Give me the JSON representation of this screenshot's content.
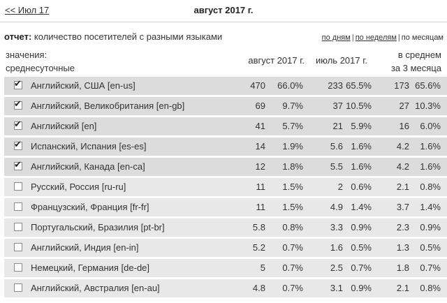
{
  "header": {
    "prev_link": "<< Июл 17",
    "title": "август 2017 г."
  },
  "report": {
    "label": "отчет:",
    "description": "количество посетителей с разными языками"
  },
  "views": {
    "by_days": "по дням",
    "by_weeks": "по неделям",
    "by_months": "по месяцам",
    "separator": "|"
  },
  "table": {
    "metric_line1": "значения:",
    "metric_line2": "среднесуточные",
    "col_aug": "август 2017 г.",
    "col_jul": "июль 2017 г.",
    "col_avg_line1": "в среднем",
    "col_avg_line2": "за 3 месяца",
    "rows": [
      {
        "lang": "Английский, США [en-us]",
        "checked": true,
        "aug": "470",
        "aug_pct": "66.0%",
        "jul": "233",
        "jul_pct": "65.5%",
        "avg": "173",
        "avg_pct": "65.6%"
      },
      {
        "lang": "Английский, Великобритания [en-gb]",
        "checked": true,
        "aug": "69",
        "aug_pct": "9.7%",
        "jul": "37",
        "jul_pct": "10.5%",
        "avg": "27",
        "avg_pct": "10.3%"
      },
      {
        "lang": "Английский [en]",
        "checked": true,
        "aug": "41",
        "aug_pct": "5.7%",
        "jul": "21",
        "jul_pct": "5.9%",
        "avg": "16",
        "avg_pct": "6.0%"
      },
      {
        "lang": "Испанский, Испания [es-es]",
        "checked": true,
        "aug": "14",
        "aug_pct": "1.9%",
        "jul": "5.6",
        "jul_pct": "1.6%",
        "avg": "4.2",
        "avg_pct": "1.6%"
      },
      {
        "lang": "Английский, Канада [en-ca]",
        "checked": true,
        "aug": "12",
        "aug_pct": "1.8%",
        "jul": "5.5",
        "jul_pct": "1.6%",
        "avg": "4.2",
        "avg_pct": "1.6%"
      },
      {
        "lang": "Русский, Россия [ru-ru]",
        "checked": false,
        "aug": "11",
        "aug_pct": "1.5%",
        "jul": "2",
        "jul_pct": "0.6%",
        "avg": "2.1",
        "avg_pct": "0.8%"
      },
      {
        "lang": "Французский, Франция [fr-fr]",
        "checked": false,
        "aug": "11",
        "aug_pct": "1.5%",
        "jul": "4.9",
        "jul_pct": "1.4%",
        "avg": "3.7",
        "avg_pct": "1.4%"
      },
      {
        "lang": "Португальский, Бразилия [pt-br]",
        "checked": false,
        "aug": "5.8",
        "aug_pct": "0.8%",
        "jul": "3.3",
        "jul_pct": "0.9%",
        "avg": "2.3",
        "avg_pct": "0.9%"
      },
      {
        "lang": "Английский, Индия [en-in]",
        "checked": false,
        "aug": "5.2",
        "aug_pct": "0.7%",
        "jul": "1.6",
        "jul_pct": "0.5%",
        "avg": "1.3",
        "avg_pct": "0.5%"
      },
      {
        "lang": "Немецкий, Германия [de-de]",
        "checked": false,
        "aug": "5",
        "aug_pct": "0.7%",
        "jul": "2.5",
        "jul_pct": "0.7%",
        "avg": "1.8",
        "avg_pct": "0.7%"
      },
      {
        "lang": "Английский, Австралия [en-au]",
        "checked": false,
        "aug": "4.8",
        "aug_pct": "0.7%",
        "jul": "3.1",
        "jul_pct": "0.9%",
        "avg": "2.1",
        "avg_pct": "0.8%"
      }
    ]
  },
  "icons": {
    "checkbox_checked": "check-mark"
  }
}
